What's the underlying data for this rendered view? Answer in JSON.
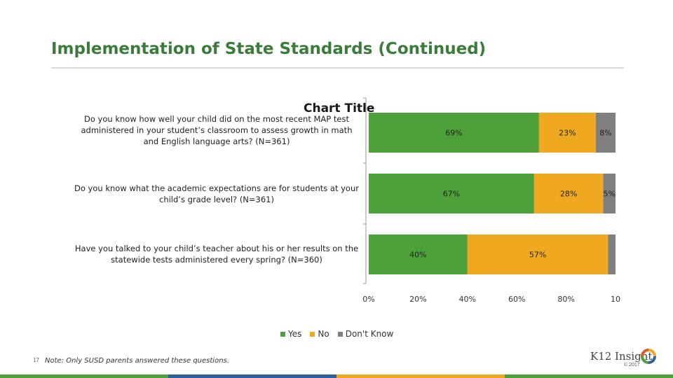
{
  "slide": {
    "title": "Implementation of State Standards (Continued)",
    "number": "17",
    "note": "Note: Only SUSD parents answered these questions.",
    "logo_text": "K12 Insight",
    "copyright": "© 2017"
  },
  "colors": {
    "yes": "#4ea03a",
    "no": "#f0a820",
    "dont_know": "#7f7f7f",
    "title": "#3a7d3a",
    "footer": [
      "#4ea03a",
      "#2e5f9e",
      "#f0a820",
      "#4ea03a"
    ]
  },
  "chart_data": {
    "type": "bar",
    "orientation": "horizontal",
    "stacked": true,
    "title": "Chart Title",
    "categories": [
      "Do you know how well your child did on the most recent MAP test administered in your student’s classroom to assess growth in math and English language arts? (N=361)",
      "Do you know what the academic expectations are for students at your child’s grade level? (N=361)",
      "Have you talked to your child’s teacher about his or her results on the statewide tests administered every spring? (N=360)"
    ],
    "series": [
      {
        "name": "Yes",
        "values": [
          69,
          67,
          40
        ],
        "labels": [
          "69%",
          "67%",
          "40%"
        ]
      },
      {
        "name": "No",
        "values": [
          23,
          28,
          57
        ],
        "labels": [
          "23%",
          "28%",
          "57%"
        ]
      },
      {
        "name": "Don't Know",
        "values": [
          8,
          5,
          3
        ],
        "labels": [
          "8%",
          "5%",
          ""
        ]
      }
    ],
    "xlim": [
      0,
      100
    ],
    "xticks": [
      "0%",
      "20%",
      "40%",
      "60%",
      "80%",
      "10"
    ],
    "legend_position": "bottom",
    "grid": false
  }
}
